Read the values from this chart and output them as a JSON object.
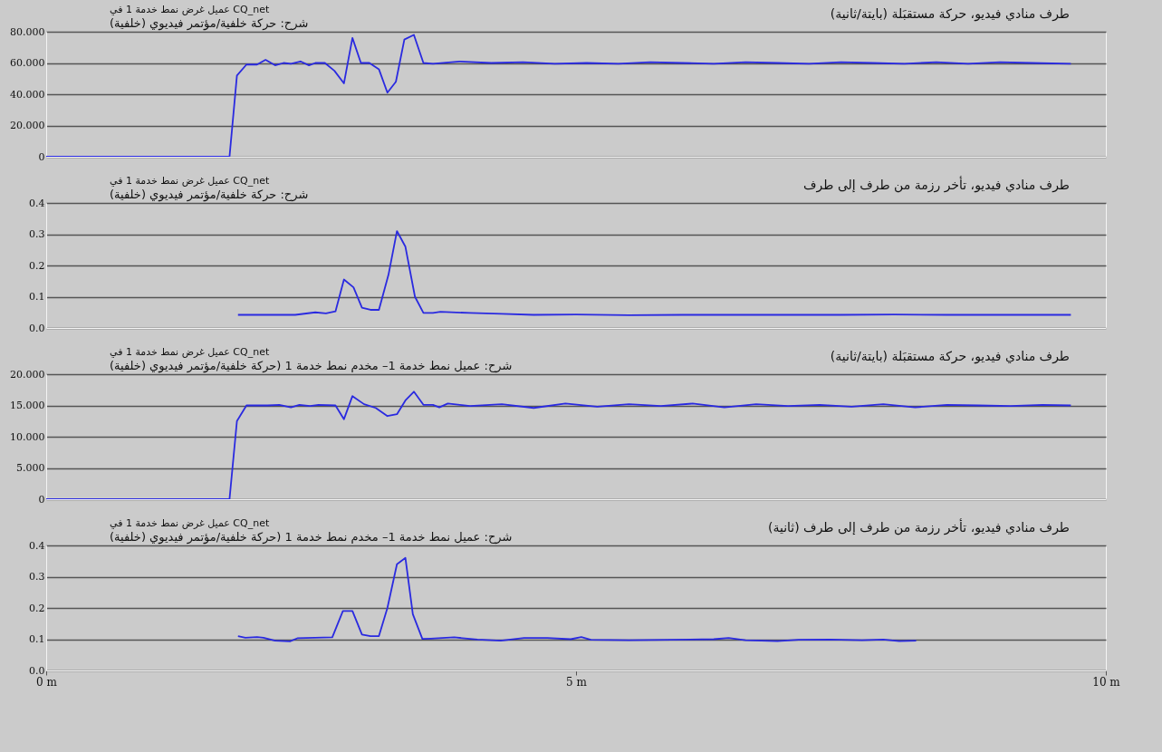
{
  "chart_data": [
    {
      "type": "line",
      "title": "طرف منادي فيديو، حركة مستقبَلة (بايتة/ثانية)",
      "annotations": [
        "عميل غرض نمط خدمة 1 في CQ_net",
        "شرح: حركة خلفية/مؤتمر فيديوي (خلفية)"
      ],
      "series": [
        {
          "color": "#2a2ae0",
          "x": [
            0,
            1.73,
            1.8,
            1.89,
            1.99,
            2.07,
            2.16,
            2.24,
            2.31,
            2.4,
            2.48,
            2.54,
            2.63,
            2.72,
            2.81,
            2.89,
            2.97,
            3.05,
            3.14,
            3.22,
            3.3,
            3.38,
            3.47,
            3.56,
            3.65,
            3.9,
            4.2,
            4.5,
            4.8,
            5.1,
            5.4,
            5.7,
            6.0,
            6.3,
            6.6,
            6.9,
            7.2,
            7.5,
            7.8,
            8.1,
            8.4,
            8.7,
            9.0,
            9.3,
            9.67
          ],
          "values": [
            0,
            0,
            52,
            59,
            59,
            62,
            58.5,
            60,
            59.5,
            61,
            58.5,
            60,
            60,
            55,
            47,
            76,
            60,
            60,
            56,
            41,
            48,
            75,
            78,
            60,
            59.5,
            61,
            60,
            60.5,
            59.5,
            60,
            59.5,
            60.5,
            60,
            59.5,
            60.5,
            60,
            59.5,
            60.5,
            60,
            59.5,
            60.5,
            59.5,
            60.5,
            60,
            59.5
          ]
        }
      ],
      "xlim": [
        0,
        10
      ],
      "ylim": [
        0,
        80
      ],
      "yticks": [
        0,
        {
          "value": 20,
          "label": "20.000"
        },
        {
          "value": 40,
          "label": "40.000"
        },
        {
          "value": 60,
          "label": "60.000"
        },
        {
          "value": 80,
          "label": "80.000"
        }
      ],
      "grid": "y",
      "tick_labels": "y"
    },
    {
      "type": "line",
      "title": "طرف منادي فيديو، تأخر رزمة من طرف إلى طرف",
      "annotations": [
        "عميل غرض نمط خدمة 1 في CQ_net",
        "شرح: حركة خلفية/مؤتمر فيديوي (خلفية)"
      ],
      "series": [
        {
          "color": "#2a2ae0",
          "x": [
            1.81,
            2.01,
            2.35,
            2.54,
            2.64,
            2.73,
            2.81,
            2.9,
            2.98,
            3.06,
            3.14,
            3.23,
            3.31,
            3.39,
            3.48,
            3.56,
            3.65,
            3.72,
            4.0,
            4.3,
            4.6,
            5.0,
            5.5,
            6.0,
            6.5,
            7.0,
            7.5,
            8.0,
            8.5,
            9.0,
            9.67
          ],
          "values": [
            0.042,
            0.042,
            0.042,
            0.05,
            0.047,
            0.053,
            0.155,
            0.13,
            0.065,
            0.058,
            0.058,
            0.17,
            0.31,
            0.26,
            0.1,
            0.048,
            0.048,
            0.052,
            0.048,
            0.045,
            0.042,
            0.043,
            0.041,
            0.042,
            0.042,
            0.042,
            0.042,
            0.043,
            0.042,
            0.042,
            0.042
          ]
        }
      ],
      "xlim": [
        0,
        10
      ],
      "ylim": [
        0,
        0.4
      ],
      "yticks": [
        {
          "value": 0,
          "label": "0.0"
        },
        0.1,
        0.2,
        0.3,
        0.4
      ],
      "grid": "y",
      "tick_labels": "y"
    },
    {
      "type": "line",
      "title": "طرف منادي فيديو، حركة مستقبَلة (بايتة/ثانية)",
      "annotations": [
        "عميل غرض نمط خدمة 1 في CQ_net",
        "شرح: عميل نمط خدمة 1– مخدم نمط خدمة 1 (حركة خلفية/مؤتمر فيديوي (خلفية)"
      ],
      "series": [
        {
          "color": "#2a2ae0",
          "x": [
            0,
            1.73,
            1.8,
            1.89,
            2.09,
            2.2,
            2.31,
            2.39,
            2.49,
            2.57,
            2.73,
            2.81,
            2.89,
            3.0,
            3.11,
            3.22,
            3.31,
            3.39,
            3.47,
            3.56,
            3.65,
            3.71,
            3.79,
            4.0,
            4.3,
            4.6,
            4.9,
            5.2,
            5.5,
            5.8,
            6.1,
            6.4,
            6.7,
            7.0,
            7.3,
            7.6,
            7.9,
            8.2,
            8.5,
            8.8,
            9.1,
            9.4,
            9.67
          ],
          "values": [
            0,
            0,
            12.5,
            15,
            15,
            15.1,
            14.7,
            15.1,
            14.9,
            15.1,
            15,
            12.8,
            16.5,
            15.2,
            14.6,
            13.3,
            13.6,
            15.8,
            17.2,
            15.1,
            15.1,
            14.7,
            15.3,
            14.9,
            15.2,
            14.6,
            15.3,
            14.8,
            15.2,
            14.9,
            15.3,
            14.7,
            15.2,
            14.9,
            15.1,
            14.8,
            15.2,
            14.7,
            15.1,
            15,
            14.9,
            15.1,
            15
          ]
        }
      ],
      "xlim": [
        0,
        10
      ],
      "ylim": [
        0,
        20
      ],
      "yticks": [
        0,
        {
          "value": 5,
          "label": "5.000"
        },
        {
          "value": 10,
          "label": "10.000"
        },
        {
          "value": 15,
          "label": "15.000"
        },
        {
          "value": 20,
          "label": "20.000"
        }
      ],
      "grid": "y",
      "tick_labels": "y"
    },
    {
      "type": "line",
      "title": "طرف منادي فيديو، تأخر رزمة من طرف إلى طرف (ثانية)",
      "annotations": [
        "عميل غرض نمط خدمة 1 في CQ_net",
        "شرح: عميل نمط خدمة 1– مخدم نمط خدمة 1 (حركة خلفية/مؤتمر فيديوي (خلفية)"
      ],
      "series": [
        {
          "color": "#2a2ae0",
          "x": [
            1.81,
            1.88,
            1.99,
            2.05,
            2.16,
            2.3,
            2.37,
            2.7,
            2.8,
            2.89,
            2.98,
            3.06,
            3.14,
            3.22,
            3.31,
            3.39,
            3.46,
            3.55,
            3.63,
            3.85,
            4.07,
            4.29,
            4.51,
            4.73,
            4.95,
            5.05,
            5.14,
            5.5,
            5.9,
            6.3,
            6.44,
            6.6,
            6.9,
            7.1,
            7.4,
            7.7,
            7.9,
            8.05,
            8.21
          ],
          "values": [
            0.11,
            0.105,
            0.107,
            0.105,
            0.095,
            0.093,
            0.103,
            0.106,
            0.19,
            0.19,
            0.115,
            0.11,
            0.11,
            0.2,
            0.34,
            0.36,
            0.18,
            0.101,
            0.102,
            0.106,
            0.099,
            0.095,
            0.104,
            0.104,
            0.1,
            0.107,
            0.098,
            0.097,
            0.098,
            0.1,
            0.104,
            0.097,
            0.094,
            0.098,
            0.099,
            0.097,
            0.099,
            0.094,
            0.095
          ]
        }
      ],
      "xlim": [
        0,
        10
      ],
      "ylim": [
        0,
        0.4
      ],
      "xticks": [
        {
          "value": 0,
          "label": "0 m"
        },
        {
          "value": 5,
          "label": "5 m"
        },
        {
          "value": 10,
          "label": "10 m"
        }
      ],
      "yticks": [
        {
          "value": 0,
          "label": "0.0"
        },
        0.1,
        0.2,
        0.3,
        0.4
      ],
      "grid": "y"
    }
  ]
}
